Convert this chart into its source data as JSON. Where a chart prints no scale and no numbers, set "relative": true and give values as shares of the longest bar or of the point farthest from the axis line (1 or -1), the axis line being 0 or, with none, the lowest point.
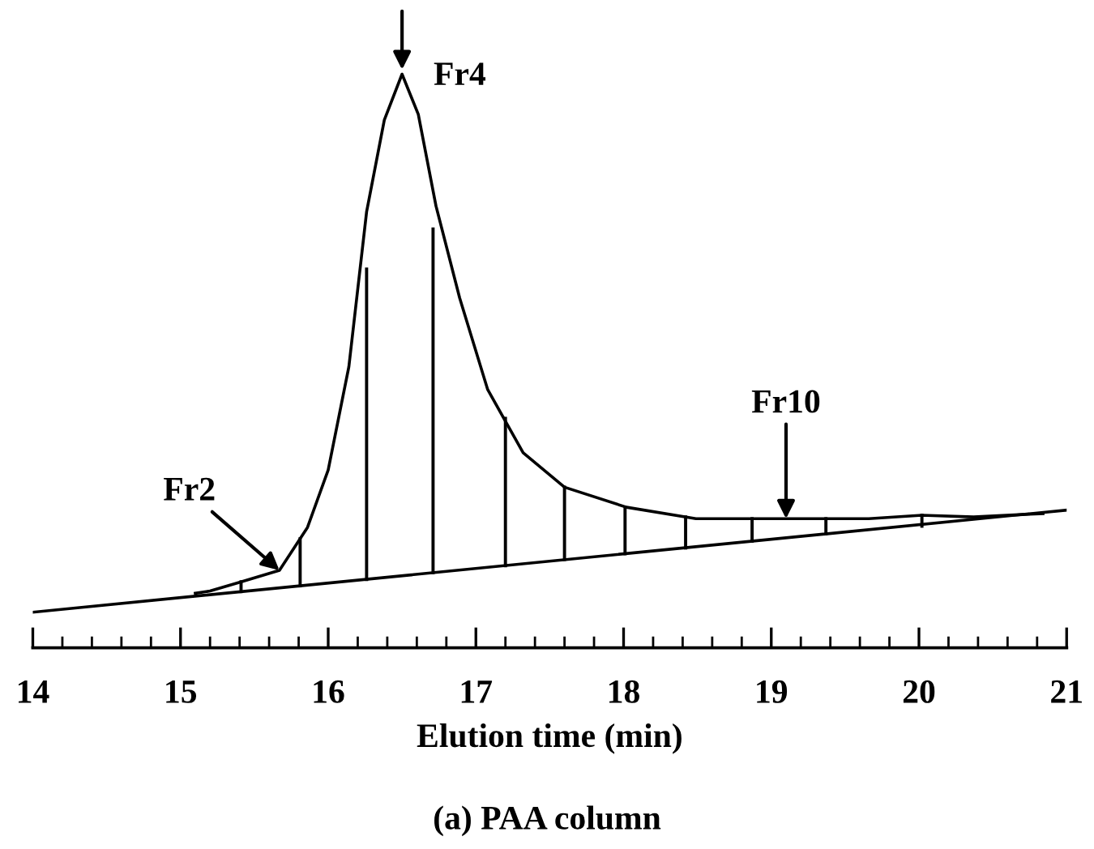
{
  "chart_data": {
    "type": "line",
    "relative": true,
    "title": "(a) PAA column",
    "xlabel": "Elution time (min)",
    "xlim": [
      14,
      21
    ],
    "xticks": [
      14,
      15,
      16,
      17,
      18,
      19,
      20,
      21
    ],
    "tick_labels": "x",
    "grid": false,
    "legend": false,
    "marker": "none",
    "line_style": "solid",
    "series": [
      {
        "color": "#000000",
        "x": [
          15.1,
          15.2,
          15.41,
          15.67,
          15.86,
          16.0,
          16.14,
          16.26,
          16.38,
          16.5,
          16.61,
          16.73,
          16.89,
          17.08,
          17.32,
          17.6,
          18.02,
          18.49,
          18.96,
          19.66,
          20.02,
          20.37,
          20.84
        ],
        "values": [
          0.095,
          0.099,
          0.115,
          0.135,
          0.21,
          0.31,
          0.49,
          0.76,
          0.92,
          1.0,
          0.93,
          0.77,
          0.61,
          0.45,
          0.34,
          0.28,
          0.245,
          0.225,
          0.225,
          0.225,
          0.231,
          0.228,
          0.234
        ]
      },
      {
        "color": "#000000",
        "x": [
          14.0,
          21.0
        ],
        "values": [
          0.062,
          0.24
        ]
      },
      {
        "color": "#000000",
        "x": [
          15.41,
          15.41
        ],
        "values": [
          0.098,
          0.115
        ]
      },
      {
        "color": "#000000",
        "x": [
          15.81,
          15.81
        ],
        "values": [
          0.108,
          0.19
        ]
      },
      {
        "color": "#000000",
        "x": [
          16.26,
          16.26
        ],
        "values": [
          0.119,
          0.66
        ]
      },
      {
        "color": "#000000",
        "x": [
          16.71,
          16.71
        ],
        "values": [
          0.131,
          0.73
        ]
      },
      {
        "color": "#000000",
        "x": [
          17.2,
          17.2
        ],
        "values": [
          0.143,
          0.4
        ]
      },
      {
        "color": "#000000",
        "x": [
          17.6,
          17.6
        ],
        "values": [
          0.154,
          0.28
        ]
      },
      {
        "color": "#000000",
        "x": [
          18.01,
          18.01
        ],
        "values": [
          0.164,
          0.245
        ]
      },
      {
        "color": "#000000",
        "x": [
          18.42,
          18.42
        ],
        "values": [
          0.174,
          0.228
        ]
      },
      {
        "color": "#000000",
        "x": [
          18.87,
          18.87
        ],
        "values": [
          0.186,
          0.225
        ]
      },
      {
        "color": "#000000",
        "x": [
          19.37,
          19.37
        ],
        "values": [
          0.199,
          0.225
        ]
      },
      {
        "color": "#000000",
        "x": [
          20.02,
          20.02
        ],
        "values": [
          0.212,
          0.231
        ]
      }
    ],
    "annotations": [
      {
        "text": "Fr4",
        "x": 16.5,
        "y": 1.0
      },
      {
        "text": "Fr2",
        "x": 15.67,
        "y": 0.135
      },
      {
        "text": "Fr10",
        "x": 19.1,
        "y": 0.225
      }
    ]
  }
}
